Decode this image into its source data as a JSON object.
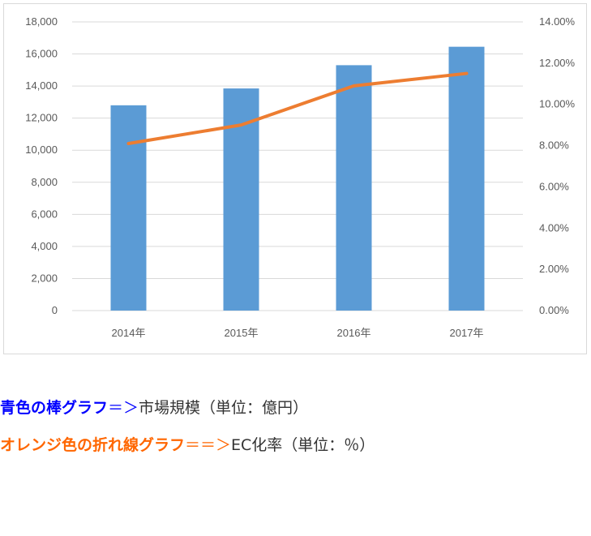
{
  "chart_data": {
    "type": "bar+line",
    "categories": [
      "2014年",
      "2015年",
      "2016年",
      "2017年"
    ],
    "series": [
      {
        "type": "bar",
        "axis": "left",
        "values": [
          12800,
          13850,
          15300,
          16450
        ]
      },
      {
        "type": "line",
        "axis": "right",
        "values": [
          8.1,
          9.0,
          10.9,
          11.5
        ]
      }
    ],
    "y_left": {
      "min": 0,
      "max": 18000,
      "step": 2000,
      "tick_labels": [
        "0",
        "2,000",
        "4,000",
        "6,000",
        "8,000",
        "10,000",
        "12,000",
        "14,000",
        "16,000",
        "18,000"
      ]
    },
    "y_right": {
      "min": 0,
      "max": 14,
      "step": 2,
      "tick_labels": [
        "0.00%",
        "2.00%",
        "4.00%",
        "6.00%",
        "8.00%",
        "10.00%",
        "12.00%",
        "14.00%"
      ]
    },
    "grid": true,
    "colors": {
      "bar": "#5b9bd5",
      "line": "#ed7d31",
      "grid": "#d9d9d9",
      "tick": "#595959"
    }
  },
  "legend": {
    "bar": {
      "name": "青色の棒グラフ",
      "arrow": "＝＞",
      "desc": "市場規模（単位：億円）",
      "color": "#0000ff"
    },
    "line": {
      "name": "オレンジ色の折れ線グラフ",
      "arrow": "＝＝＞",
      "desc": "EC化率（単位：％）",
      "color": "#ff6600"
    }
  }
}
